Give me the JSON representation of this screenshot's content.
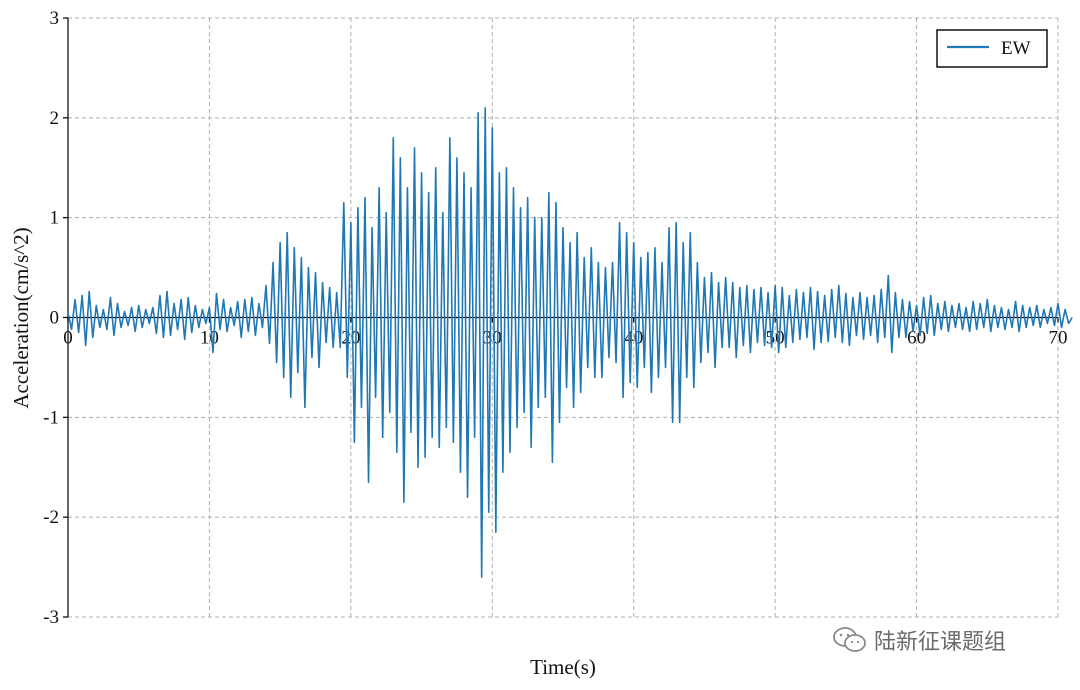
{
  "colors": {
    "series": "#1f77b4",
    "grid": "#b0b0b0",
    "axis": "#000000"
  },
  "watermark": {
    "icon": "wechat-icon",
    "text": "陆新征课题组"
  },
  "chart_data": {
    "type": "line",
    "title": "",
    "xlabel": "Time(s)",
    "ylabel": "Acceleration(cm/s^2)",
    "xlim": [
      0,
      70
    ],
    "ylim": [
      -3,
      3
    ],
    "xticks": [
      0,
      10,
      20,
      30,
      40,
      50,
      60,
      70
    ],
    "yticks": [
      -3,
      -2,
      -1,
      0,
      1,
      2,
      3
    ],
    "grid": true,
    "legend": {
      "position": "top-right",
      "entries": [
        "EW"
      ]
    },
    "series": [
      {
        "name": "EW",
        "sample_interval": 0.25,
        "x_start": 0,
        "y": [
          0.05,
          -0.12,
          0.18,
          -0.15,
          0.22,
          -0.28,
          0.26,
          -0.2,
          0.12,
          -0.1,
          0.08,
          -0.12,
          0.2,
          -0.18,
          0.14,
          -0.1,
          0.06,
          -0.08,
          0.1,
          -0.14,
          0.12,
          -0.1,
          0.08,
          -0.06,
          0.1,
          -0.16,
          0.22,
          -0.2,
          0.26,
          -0.18,
          0.14,
          -0.12,
          0.18,
          -0.22,
          0.2,
          -0.15,
          0.12,
          -0.1,
          0.08,
          -0.06,
          0.1,
          -0.35,
          0.24,
          -0.12,
          0.18,
          -0.14,
          0.1,
          -0.08,
          0.16,
          -0.2,
          0.18,
          -0.14,
          0.2,
          -0.18,
          0.14,
          -0.1,
          0.32,
          -0.26,
          0.55,
          -0.45,
          0.75,
          -0.6,
          0.85,
          -0.8,
          0.7,
          -0.55,
          0.6,
          -0.9,
          0.5,
          -0.4,
          0.45,
          -0.5,
          0.35,
          -0.25,
          0.3,
          -0.3,
          0.25,
          -0.3,
          1.15,
          -0.6,
          0.95,
          -1.25,
          1.1,
          -0.9,
          1.2,
          -1.65,
          0.9,
          -0.8,
          1.3,
          -1.2,
          1.05,
          -0.95,
          1.8,
          -1.35,
          1.6,
          -1.85,
          1.3,
          -1.15,
          1.7,
          -1.5,
          1.45,
          -1.4,
          1.25,
          -1.2,
          1.5,
          -1.3,
          1.05,
          -1.1,
          1.8,
          -1.25,
          1.6,
          -1.55,
          1.45,
          -1.8,
          1.3,
          -1.2,
          2.05,
          -2.6,
          2.1,
          -1.95,
          1.9,
          -2.15,
          1.45,
          -1.55,
          1.5,
          -1.35,
          1.3,
          -1.1,
          1.1,
          -0.95,
          1.2,
          -1.3,
          1.0,
          -0.9,
          1.0,
          -0.8,
          1.25,
          -1.45,
          1.15,
          -1.05,
          0.9,
          -0.7,
          0.75,
          -0.9,
          0.85,
          -0.75,
          0.6,
          -0.5,
          0.7,
          -0.6,
          0.55,
          -0.6,
          0.5,
          -0.4,
          0.55,
          -0.45,
          0.95,
          -0.8,
          0.85,
          -0.65,
          0.75,
          -0.7,
          0.6,
          -0.5,
          0.65,
          -0.75,
          0.7,
          -0.6,
          0.55,
          -0.5,
          0.9,
          -1.05,
          0.95,
          -1.05,
          0.75,
          -0.6,
          0.85,
          -0.7,
          0.55,
          -0.45,
          0.4,
          -0.35,
          0.45,
          -0.5,
          0.35,
          -0.3,
          0.4,
          -0.3,
          0.35,
          -0.4,
          0.3,
          -0.28,
          0.32,
          -0.35,
          0.28,
          -0.25,
          0.3,
          -0.28,
          0.25,
          -0.3,
          0.32,
          -0.35,
          0.3,
          -0.3,
          0.22,
          -0.25,
          0.28,
          -0.22,
          0.25,
          -0.2,
          0.3,
          -0.32,
          0.26,
          -0.25,
          0.22,
          -0.24,
          0.28,
          -0.2,
          0.32,
          -0.25,
          0.24,
          -0.28,
          0.2,
          -0.18,
          0.25,
          -0.22,
          0.2,
          -0.18,
          0.22,
          -0.25,
          0.28,
          -0.2,
          0.42,
          -0.35,
          0.25,
          -0.2,
          0.18,
          -0.2,
          0.16,
          -0.14,
          0.12,
          -0.18,
          0.2,
          -0.16,
          0.22,
          -0.18,
          0.14,
          -0.12,
          0.16,
          -0.14,
          0.12,
          -0.1,
          0.14,
          -0.12,
          0.1,
          -0.14,
          0.16,
          -0.12,
          0.14,
          -0.1,
          0.18,
          -0.14,
          0.12,
          -0.1,
          0.1,
          -0.12,
          0.08,
          -0.1,
          0.16,
          -0.14,
          0.12,
          -0.1,
          0.1,
          -0.08,
          0.12,
          -0.1,
          0.08,
          -0.06,
          0.1,
          -0.08,
          0.14,
          -0.1,
          0.08,
          -0.06,
          0.0
        ]
      }
    ]
  }
}
